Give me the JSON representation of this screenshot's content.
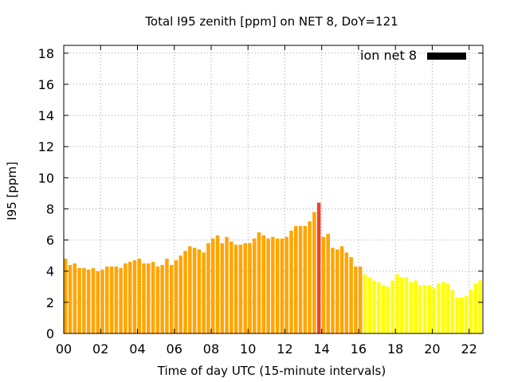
{
  "chart_data": {
    "type": "bar",
    "title": "Total I95 zenith [ppm] on NET 8, DoY=121",
    "xlabel": "Time of day UTC (15-minute intervals)",
    "ylabel": "I95 [ppm]",
    "xlim": [
      0,
      22.75
    ],
    "ylim": [
      0,
      18.5
    ],
    "x_ticks": [
      0,
      2,
      4,
      6,
      8,
      10,
      12,
      14,
      16,
      18,
      20,
      22
    ],
    "x_tick_labels": [
      "00",
      "02",
      "04",
      "06",
      "08",
      "10",
      "12",
      "14",
      "16",
      "18",
      "20",
      "22"
    ],
    "y_ticks": [
      0,
      2,
      4,
      6,
      8,
      10,
      12,
      14,
      16,
      18
    ],
    "y_tick_labels": [
      "0",
      "2",
      "4",
      "6",
      "8",
      "10",
      "12",
      "14",
      "16",
      "18"
    ],
    "grid": true,
    "legend": {
      "position": "top-right",
      "entries": [
        {
          "label": "ion net 8",
          "color": "#000000"
        }
      ]
    },
    "bar_colors": {
      "#FFA500": "orange",
      "#FFFF00": "yellow",
      "#F04030": "red"
    },
    "x": [
      0.0,
      0.25,
      0.5,
      0.75,
      1.0,
      1.25,
      1.5,
      1.75,
      2.0,
      2.25,
      2.5,
      2.75,
      3.0,
      3.25,
      3.5,
      3.75,
      4.0,
      4.25,
      4.5,
      4.75,
      5.0,
      5.25,
      5.5,
      5.75,
      6.0,
      6.25,
      6.5,
      6.75,
      7.0,
      7.25,
      7.5,
      7.75,
      8.0,
      8.25,
      8.5,
      8.75,
      9.0,
      9.25,
      9.5,
      9.75,
      10.0,
      10.25,
      10.5,
      10.75,
      11.0,
      11.25,
      11.5,
      11.75,
      12.0,
      12.25,
      12.5,
      12.75,
      13.0,
      13.25,
      13.5,
      13.75,
      14.0,
      14.25,
      14.5,
      14.75,
      15.0,
      15.25,
      15.5,
      15.75,
      16.0,
      16.25,
      16.5,
      16.75,
      17.0,
      17.25,
      17.5,
      17.75,
      18.0,
      18.25,
      18.5,
      18.75,
      19.0,
      19.25,
      19.5,
      19.75,
      20.0,
      20.25,
      20.5,
      20.75,
      21.0,
      21.25,
      21.5,
      21.75,
      22.0,
      22.25,
      22.5
    ],
    "values": [
      4.8,
      4.4,
      4.5,
      4.2,
      4.2,
      4.1,
      4.2,
      4.0,
      4.1,
      4.3,
      4.3,
      4.3,
      4.2,
      4.5,
      4.6,
      4.7,
      4.8,
      4.5,
      4.5,
      4.6,
      4.3,
      4.4,
      4.8,
      4.4,
      4.7,
      5.0,
      5.3,
      5.6,
      5.5,
      5.4,
      5.2,
      5.8,
      6.1,
      6.3,
      5.8,
      6.2,
      5.9,
      5.7,
      5.7,
      5.8,
      5.8,
      6.1,
      6.5,
      6.3,
      6.1,
      6.2,
      6.1,
      6.1,
      6.2,
      6.6,
      6.9,
      6.9,
      6.9,
      7.2,
      7.8,
      8.4,
      6.2,
      6.4,
      5.5,
      5.4,
      5.6,
      5.2,
      4.9,
      4.3,
      4.3,
      3.8,
      3.6,
      3.4,
      3.3,
      3.1,
      3.0,
      3.4,
      3.8,
      3.6,
      3.6,
      3.3,
      3.4,
      3.1,
      3.1,
      3.1,
      2.9,
      3.2,
      3.3,
      3.2,
      2.8,
      2.3,
      2.3,
      2.4,
      2.8,
      3.2,
      3.4
    ],
    "colors": [
      "#FFA500",
      "#FFA500",
      "#FFA500",
      "#FFA500",
      "#FFA500",
      "#FFA500",
      "#FFA500",
      "#FFA500",
      "#FFA500",
      "#FFA500",
      "#FFA500",
      "#FFA500",
      "#FFA500",
      "#FFA500",
      "#FFA500",
      "#FFA500",
      "#FFA500",
      "#FFA500",
      "#FFA500",
      "#FFA500",
      "#FFA500",
      "#FFA500",
      "#FFA500",
      "#FFA500",
      "#FFA500",
      "#FFA500",
      "#FFA500",
      "#FFA500",
      "#FFA500",
      "#FFA500",
      "#FFA500",
      "#FFA500",
      "#FFA500",
      "#FFA500",
      "#FFA500",
      "#FFA500",
      "#FFA500",
      "#FFA500",
      "#FFA500",
      "#FFA500",
      "#FFA500",
      "#FFA500",
      "#FFA500",
      "#FFA500",
      "#FFA500",
      "#FFA500",
      "#FFA500",
      "#FFA500",
      "#FFA500",
      "#FFA500",
      "#FFA500",
      "#FFA500",
      "#FFA500",
      "#FFA500",
      "#FFA500",
      "#F04030",
      "#FFA500",
      "#FFA500",
      "#FFA500",
      "#FFA500",
      "#FFA500",
      "#FFA500",
      "#FFA500",
      "#FFA500",
      "#FFA500",
      "#FFFF00",
      "#FFFF00",
      "#FFFF00",
      "#FFFF00",
      "#FFFF00",
      "#FFFF00",
      "#FFFF00",
      "#FFFF00",
      "#FFFF00",
      "#FFFF00",
      "#FFFF00",
      "#FFFF00",
      "#FFFF00",
      "#FFFF00",
      "#FFFF00",
      "#FFFF00",
      "#FFFF00",
      "#FFFF00",
      "#FFFF00",
      "#FFFF00",
      "#FFFF00",
      "#FFFF00",
      "#FFFF00",
      "#FFFF00",
      "#FFFF00",
      "#FFFF00"
    ]
  }
}
